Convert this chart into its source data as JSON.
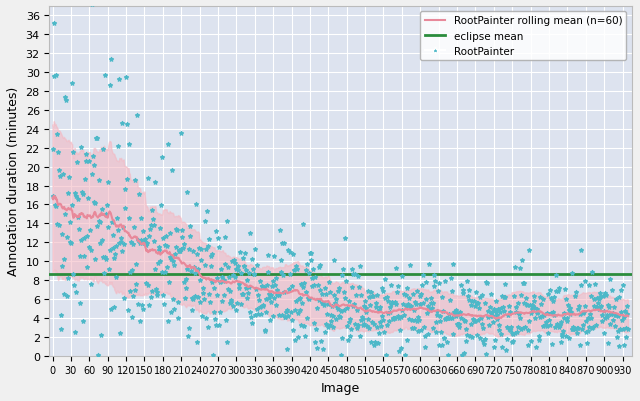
{
  "n": 940,
  "eclipse_mean": 8.6,
  "rolling_window": 60,
  "x_ticks": [
    0,
    30,
    60,
    90,
    120,
    150,
    180,
    210,
    240,
    270,
    300,
    330,
    360,
    390,
    420,
    450,
    480,
    510,
    540,
    570,
    600,
    630,
    660,
    690,
    720,
    750,
    780,
    810,
    840,
    870,
    900,
    930
  ],
  "ylim": [
    0,
    37
  ],
  "y_ticks": [
    0,
    2,
    4,
    6,
    8,
    10,
    12,
    14,
    16,
    18,
    20,
    22,
    24,
    26,
    28,
    30,
    32,
    34,
    36
  ],
  "xlabel": "Image",
  "ylabel": "Annotation duration (minutes)",
  "scatter_color": "#4db8c8",
  "scatter_marker": "*",
  "scatter_size": 8,
  "rolling_mean_color": "#e8899a",
  "rolling_mean_linewidth": 1.5,
  "fill_color": "#f4b8c2",
  "fill_alpha": 0.6,
  "eclipse_mean_color": "#2a8c3c",
  "eclipse_mean_linewidth": 2.0,
  "legend_rolling": "RootPainter rolling mean (n=60)",
  "legend_eclipse": "eclipse mean",
  "legend_scatter": "RootPainter",
  "background_color": "#dde3ef",
  "grid_color": "#ffffff",
  "figure_bg": "#f0f0f0"
}
